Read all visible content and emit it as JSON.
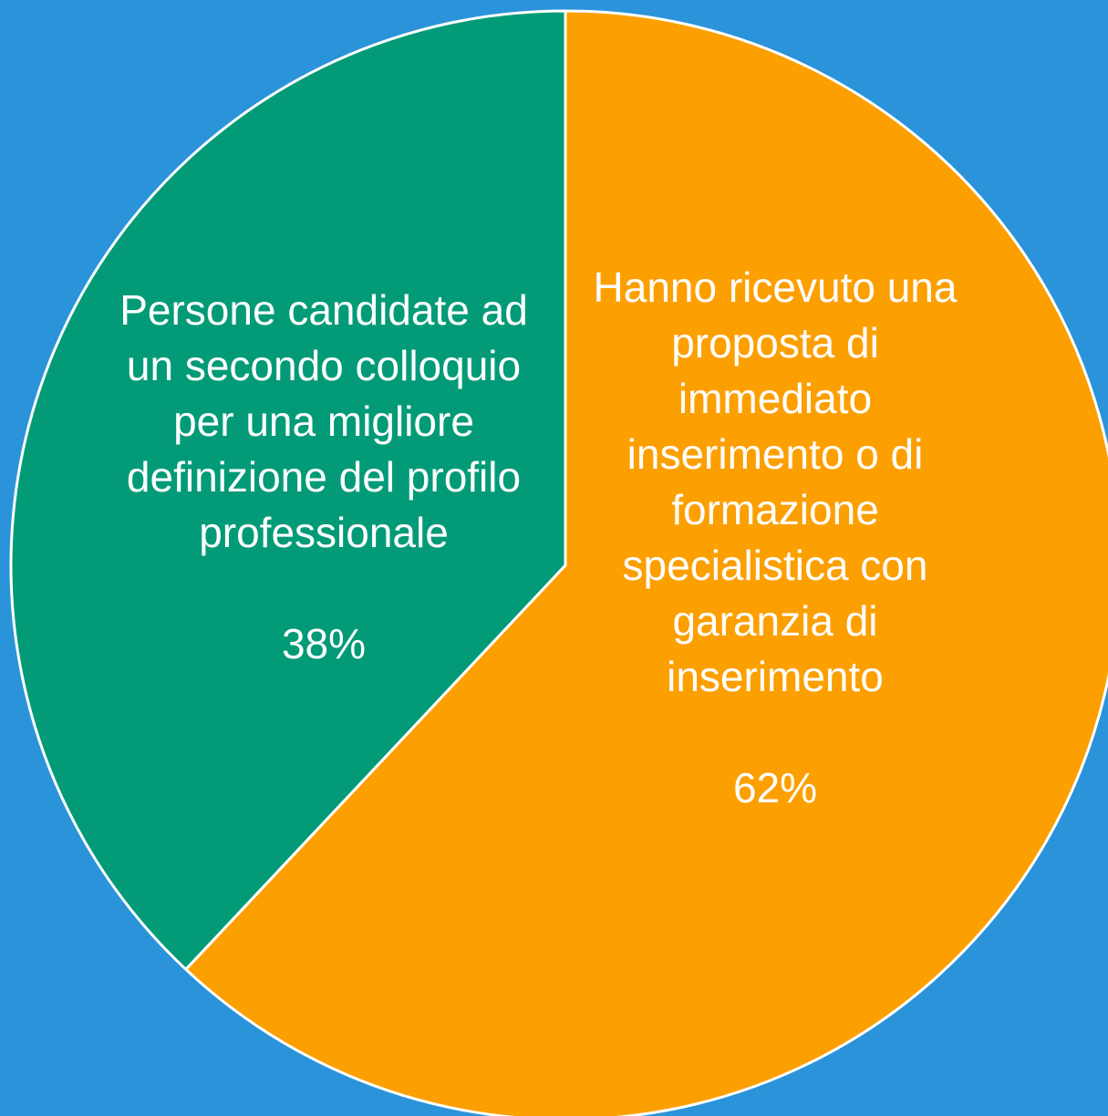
{
  "chart_data": {
    "type": "pie",
    "categories": [
      "Hanno ricevuto una proposta di immediato inserimento o di formazione specialistica con garanzia di inserimento",
      "Persone candidate ad un secondo colloquio per una migliore definizione del profilo professionale"
    ],
    "values": [
      62,
      38
    ],
    "value_labels": [
      "62%",
      "38%"
    ],
    "colors": [
      "#fc9f00",
      "#039b77"
    ],
    "background": "#2b93d9"
  }
}
